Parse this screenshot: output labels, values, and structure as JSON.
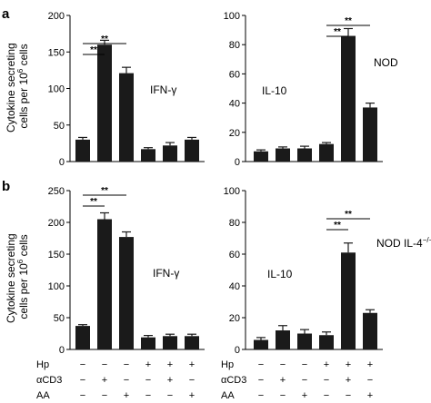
{
  "figure": {
    "row_labels": [
      "a",
      "b"
    ],
    "ylabel_line1": "Cytokine secreting",
    "ylabel_line2_prefix": "cells per 10",
    "ylabel_line2_sup": "6",
    "ylabel_line2_suffix": " cells",
    "treatment_row_labels": [
      "Hp",
      "αCD3",
      "AA"
    ],
    "treatment_symbols": {
      "Hp": [
        "−",
        "−",
        "−",
        "+",
        "+",
        "+"
      ],
      "αCD3": [
        "−",
        "+",
        "−",
        "−",
        "+",
        "−"
      ],
      "AA": [
        "−",
        "−",
        "+",
        "−",
        "−",
        "+"
      ]
    },
    "significance_marker": "**"
  },
  "chart_data": [
    {
      "panel": "a-left",
      "type": "bar",
      "label": "IFN-γ",
      "ylim": [
        0,
        200
      ],
      "yticks": [
        0,
        50,
        100,
        150,
        200
      ],
      "values": [
        30,
        160,
        121,
        17,
        22,
        30
      ],
      "errors": [
        3,
        6,
        8,
        2,
        4,
        3
      ],
      "significance": [
        [
          0,
          1
        ],
        [
          0,
          2
        ]
      ]
    },
    {
      "panel": "a-right",
      "type": "bar",
      "label": "IL-10",
      "condition": "NOD",
      "ylim": [
        0,
        100
      ],
      "yticks": [
        0,
        20,
        40,
        60,
        80,
        100
      ],
      "values": [
        7,
        9,
        9,
        12,
        86,
        37
      ],
      "errors": [
        1,
        1,
        1.5,
        1,
        5,
        3
      ],
      "significance": [
        [
          3,
          4
        ],
        [
          3,
          5
        ]
      ]
    },
    {
      "panel": "b-left",
      "type": "bar",
      "label": "IFN-γ",
      "ylim": [
        0,
        250
      ],
      "yticks": [
        0,
        50,
        100,
        150,
        200,
        250
      ],
      "values": [
        37,
        205,
        177,
        19,
        21,
        21
      ],
      "errors": [
        2,
        10,
        8,
        3,
        3,
        3
      ],
      "significance": [
        [
          0,
          1
        ],
        [
          0,
          2
        ]
      ]
    },
    {
      "panel": "b-right",
      "type": "bar",
      "label": "IL-10",
      "condition": "NOD IL-4",
      "condition_sup": "−/−",
      "ylim": [
        0,
        100
      ],
      "yticks": [
        0,
        20,
        40,
        60,
        80,
        100
      ],
      "values": [
        6,
        12,
        10,
        9,
        61,
        23
      ],
      "errors": [
        1.5,
        3,
        2.5,
        2,
        6,
        2
      ],
      "significance": [
        [
          3,
          4
        ],
        [
          3,
          5
        ]
      ]
    }
  ]
}
